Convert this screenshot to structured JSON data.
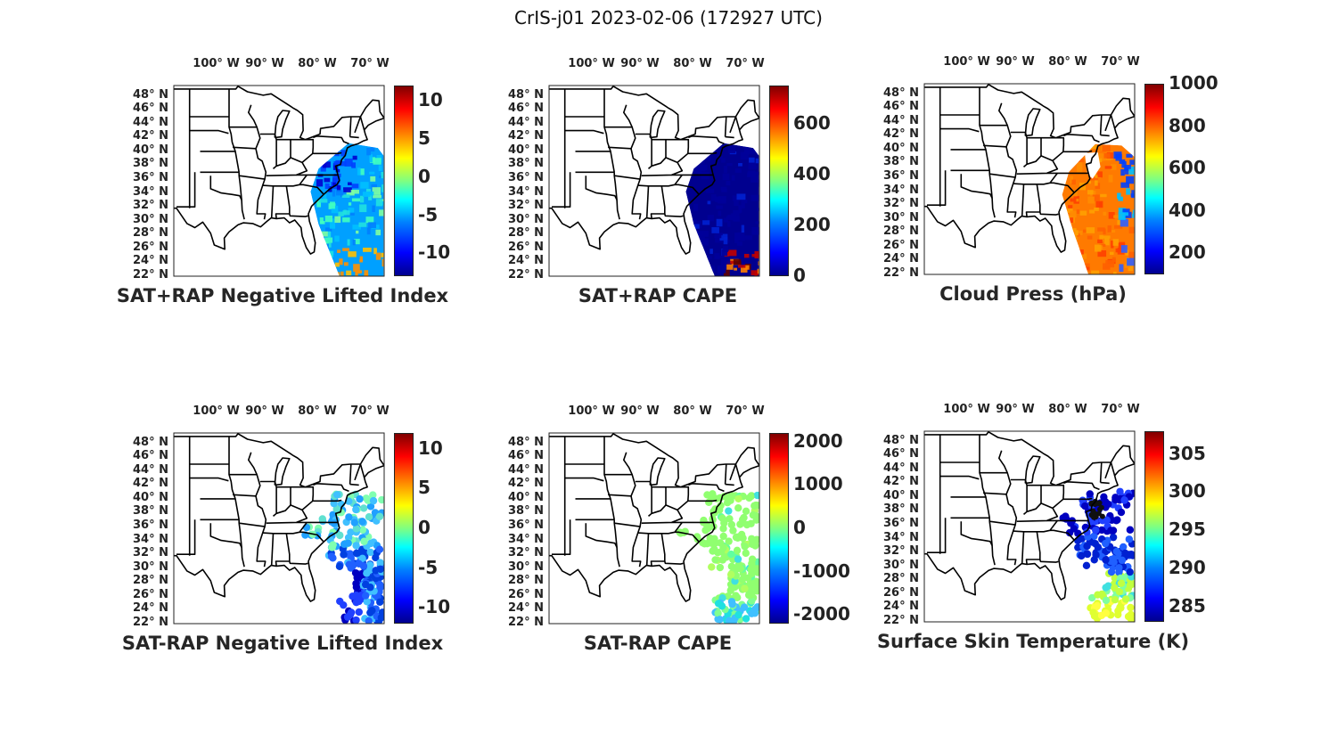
{
  "figure": {
    "title": "CrIS-j01 2023-02-06 (172927 UTC)"
  },
  "axes": {
    "lon_ticks": [
      "100° W",
      "90° W",
      "80° W",
      "70° W"
    ],
    "lat_ticks": [
      "48° N",
      "46° N",
      "44° N",
      "42° N",
      "40° N",
      "38° N",
      "36° N",
      "34° N",
      "32° N",
      "30° N",
      "28° N",
      "26° N",
      "24° N",
      "22° N"
    ]
  },
  "panels": [
    {
      "title": "SAT+RAP Negative Lifted Index",
      "colorbar": [
        "10",
        "5",
        "0",
        "-5",
        "-10"
      ],
      "range": [
        -13,
        12
      ]
    },
    {
      "title": "SAT+RAP CAPE",
      "colorbar": [
        "600",
        "400",
        "200",
        "0"
      ],
      "range": [
        0,
        750
      ]
    },
    {
      "title": "Cloud Press (hPa)",
      "colorbar": [
        "1000",
        "800",
        "600",
        "400",
        "200"
      ],
      "range": [
        100,
        1000
      ]
    },
    {
      "title": "SAT-RAP Negative Lifted Index",
      "colorbar": [
        "10",
        "5",
        "0",
        "-5",
        "-10"
      ],
      "range": [
        -12,
        12
      ]
    },
    {
      "title": "SAT-RAP CAPE",
      "colorbar": [
        "2000",
        "1000",
        "0",
        "-1000",
        "-2000"
      ],
      "range": [
        -2200,
        2200
      ]
    },
    {
      "title": "Surface Skin Temperature (K)",
      "colorbar": [
        "305",
        "300",
        "295",
        "290",
        "285"
      ],
      "range": [
        283,
        308
      ]
    }
  ],
  "colors": {
    "jet_low": "#00008f",
    "jet_mid": "#80ff80",
    "jet_high": "#800000"
  }
}
